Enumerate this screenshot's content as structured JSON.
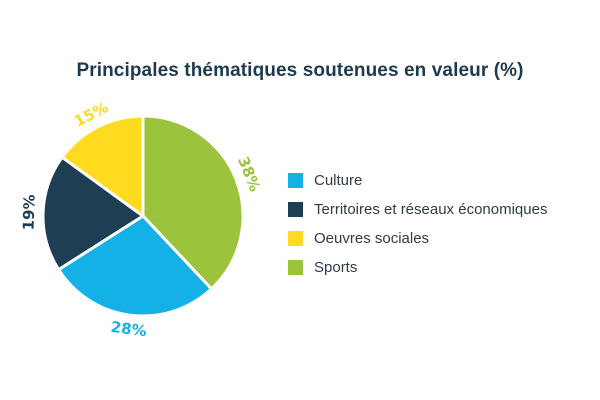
{
  "chart_data": {
    "type": "pie",
    "title": "Principales thématiques soutenues en valeur (%)",
    "categories": [
      "Culture",
      "Territoires et réseaux économiques",
      "Oeuvres sociales",
      "Sports"
    ],
    "values": [
      28,
      19,
      15,
      38
    ],
    "value_labels": [
      "28%",
      "19%",
      "15%",
      "38%"
    ],
    "colors": [
      "#14b1e7",
      "#1e3e54",
      "#fedb1f",
      "#9bc33b"
    ],
    "legend_position": "right"
  }
}
